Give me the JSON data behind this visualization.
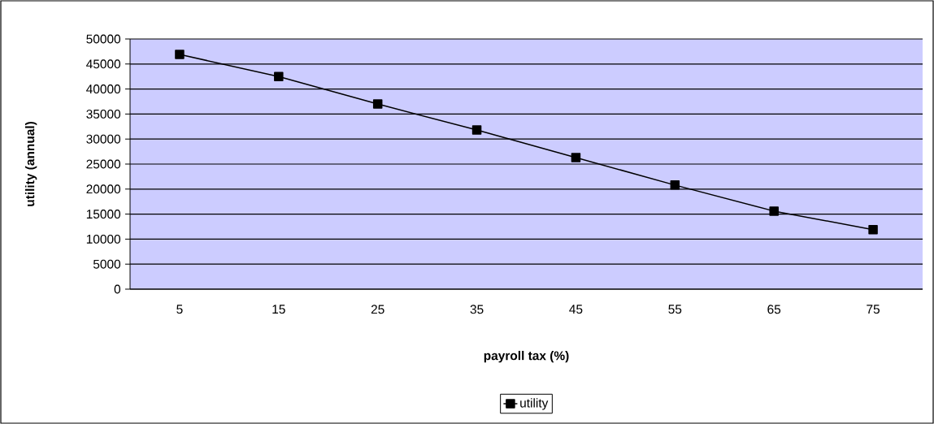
{
  "chart_data": {
    "type": "line",
    "xlabel": "payroll tax (%)",
    "ylabel": "utility (annual)",
    "categories": [
      "5",
      "15",
      "25",
      "35",
      "45",
      "55",
      "65",
      "75"
    ],
    "series": [
      {
        "name": "utility",
        "color": "#000000",
        "values": [
          46900,
          42500,
          37000,
          31800,
          26300,
          20800,
          15600,
          11900
        ]
      }
    ],
    "ylim": [
      0,
      50000
    ],
    "yticks": [
      0,
      5000,
      10000,
      15000,
      20000,
      25000,
      30000,
      35000,
      40000,
      45000,
      50000
    ],
    "grid": "y",
    "legend": "bottom",
    "marker": "square",
    "line_style": "solid"
  }
}
